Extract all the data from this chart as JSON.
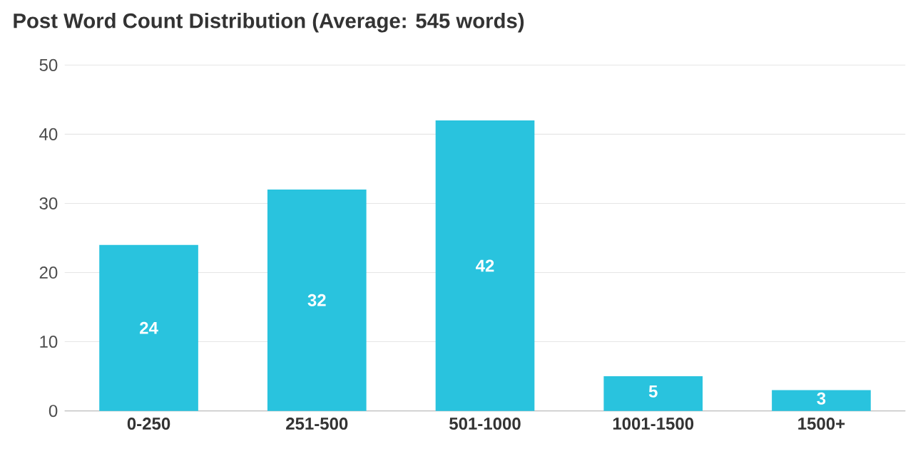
{
  "chart_data": {
    "type": "bar",
    "title": "Post Word Count Distribution (Average: 545 words)",
    "categories": [
      "0-250",
      "251-500",
      "501-1000",
      "1001-1500",
      "1500+"
    ],
    "values": [
      24,
      32,
      42,
      5,
      3
    ],
    "color": "#29c3de",
    "ylim": [
      0,
      50
    ],
    "yticks": [
      0,
      10,
      20,
      30,
      40,
      50
    ],
    "grid": "y",
    "data_labels": true
  }
}
